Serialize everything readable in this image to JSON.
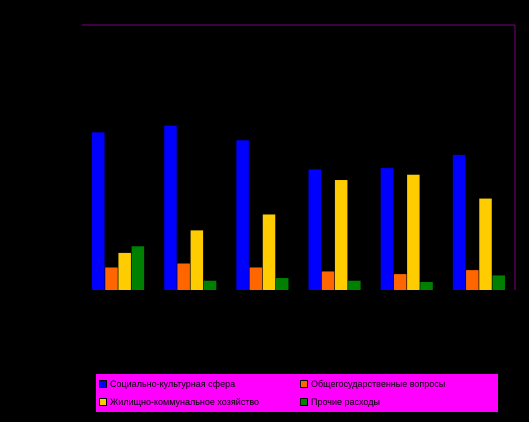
{
  "chart_data": {
    "type": "bar",
    "categories": [
      "",
      "",
      "",
      "",
      "",
      ""
    ],
    "series": [
      {
        "name": "Социально-культурная сфера",
        "color": "#0000ff",
        "values": [
          59.5,
          62,
          56.5,
          45.5,
          46,
          51
        ]
      },
      {
        "name": "Общегосударственные вопросы",
        "color": "#ff6600",
        "values": [
          8.5,
          10,
          8.5,
          7,
          6,
          7.5
        ]
      },
      {
        "name": "Жилищно-коммунальное хозяйство",
        "color": "#ffcc00",
        "values": [
          14,
          22.5,
          28.5,
          41.5,
          43.5,
          34.5
        ]
      },
      {
        "name": "Прочие расходы",
        "color": "#008000",
        "values": [
          16.5,
          3.5,
          4.5,
          3.5,
          3,
          5.5
        ]
      }
    ],
    "ylim": [
      0,
      100
    ],
    "grid": false,
    "legend_position": "bottom",
    "frame_color": "#800080",
    "legend_background": "#ff00ff"
  }
}
